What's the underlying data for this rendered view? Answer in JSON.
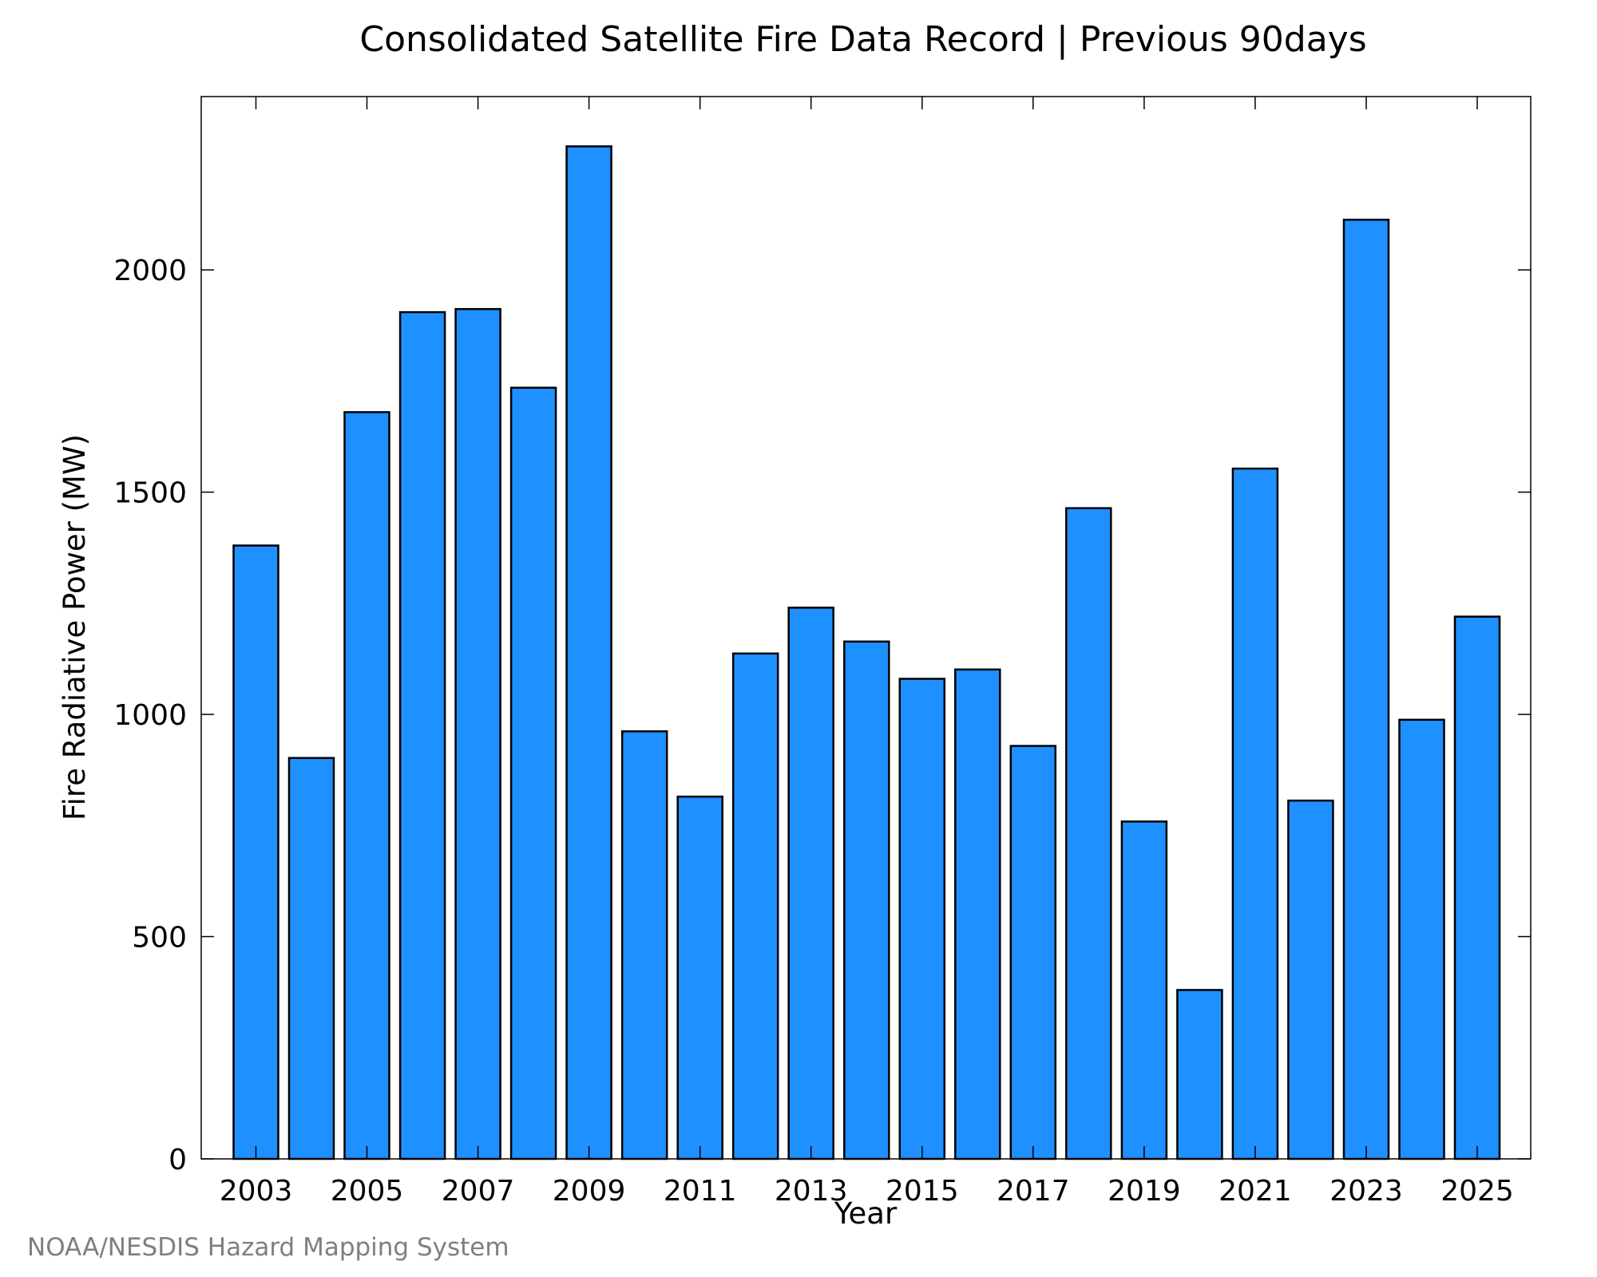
{
  "chart_data": {
    "type": "bar",
    "title": "Consolidated Satellite Fire Data Record | Previous 90days",
    "xlabel": "Year",
    "ylabel": "Fire Radiative Power (MW)",
    "categories": [
      "2003",
      "2004",
      "2005",
      "2006",
      "2007",
      "2008",
      "2009",
      "2010",
      "2011",
      "2012",
      "2013",
      "2014",
      "2015",
      "2016",
      "2017",
      "2018",
      "2019",
      "2020",
      "2021",
      "2022",
      "2023",
      "2024",
      "2025"
    ],
    "values": [
      1380,
      902,
      1680,
      1905,
      1912,
      1735,
      2278,
      962,
      815,
      1137,
      1240,
      1164,
      1080,
      1101,
      929,
      1464,
      759,
      380,
      1553,
      806,
      2113,
      988,
      1220
    ],
    "x_tick_labels": [
      "2003",
      "2005",
      "2007",
      "2009",
      "2011",
      "2013",
      "2015",
      "2017",
      "2019",
      "2021",
      "2023",
      "2025"
    ],
    "y_ticks": [
      0,
      500,
      1000,
      1500,
      2000
    ],
    "y_tick_labels": [
      "0",
      "500",
      "1000",
      "1500",
      "2000"
    ],
    "ylim": [
      0,
      2390
    ],
    "grid": false,
    "legend": "none",
    "colors": {
      "bar_fill": "#1e90ff",
      "bar_edge": "#000000",
      "axis": "#000000",
      "credit_text": "#7f7f7f"
    }
  },
  "credit": "NOAA/NESDIS Hazard Mapping System"
}
